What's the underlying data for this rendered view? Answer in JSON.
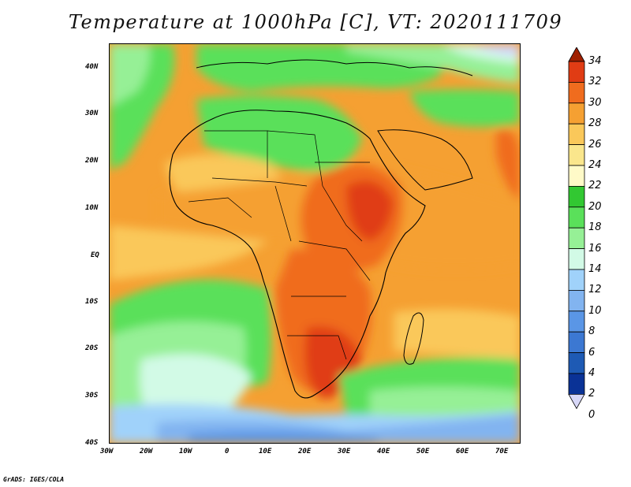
{
  "title": "Temperature at 1000hPa [C], VT: 2020111709",
  "lat_labels": [
    "40N",
    "30N",
    "20N",
    "10N",
    "EQ",
    "10S",
    "20S",
    "30S",
    "40S"
  ],
  "lon_labels": [
    "30W",
    "20W",
    "10W",
    "0",
    "10E",
    "20E",
    "30E",
    "40E",
    "50E",
    "60E",
    "70E"
  ],
  "colorbar": {
    "labels": [
      "34",
      "32",
      "30",
      "28",
      "26",
      "24",
      "22",
      "20",
      "18",
      "16",
      "14",
      "12",
      "10",
      "8",
      "6",
      "4",
      "2",
      "0"
    ],
    "colors": [
      "#a02000",
      "#e03c14",
      "#f06c1e",
      "#f5a032",
      "#fac85a",
      "#fae68c",
      "#fffac8",
      "#32c832",
      "#5ae05a",
      "#96f096",
      "#d2fae6",
      "#a0d2fa",
      "#82b4f0",
      "#5a96e6",
      "#3c78d2",
      "#1e5ab4",
      "#0a3296",
      "#141e6e"
    ]
  },
  "credit": "GrADS: IGES/COLA"
}
